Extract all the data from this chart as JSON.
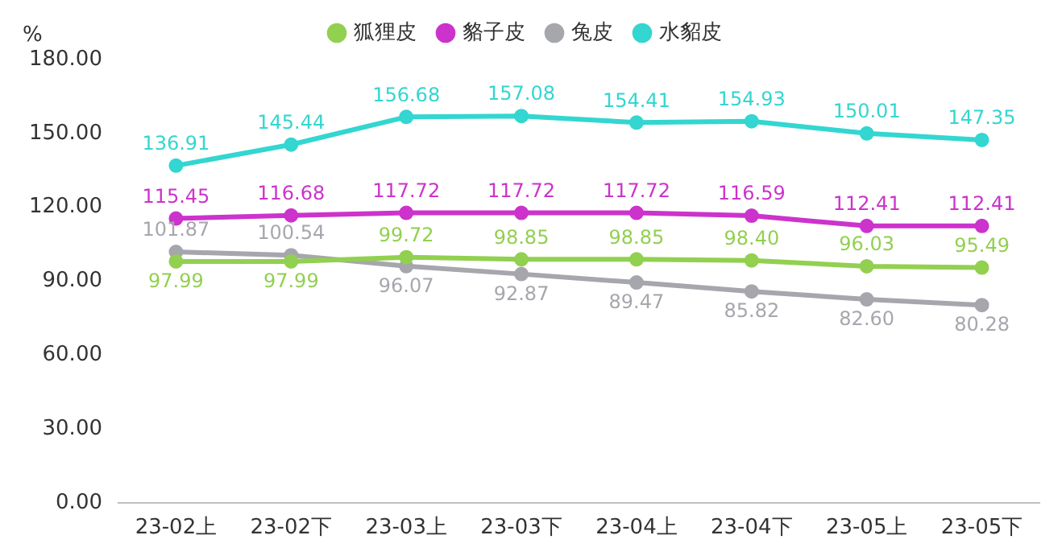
{
  "chart_data": {
    "type": "line",
    "ylabel": "%",
    "categories": [
      "23-02上",
      "23-02下",
      "23-03上",
      "23-03下",
      "23-04上",
      "23-04下",
      "23-05上",
      "23-05下"
    ],
    "series": [
      {
        "name": "狐狸皮",
        "color": "#92d050",
        "values": [
          97.99,
          97.99,
          99.72,
          98.85,
          98.85,
          98.4,
          96.03,
          95.49
        ],
        "value_labels": [
          "97.99",
          "97.99",
          "99.72",
          "98.85",
          "98.85",
          "98.40",
          "96.03",
          "95.49"
        ]
      },
      {
        "name": "貉子皮",
        "color": "#cc33cc",
        "values": [
          115.45,
          116.68,
          117.72,
          117.72,
          117.72,
          116.59,
          112.41,
          112.41
        ],
        "value_labels": [
          "115.45",
          "116.68",
          "117.72",
          "117.72",
          "117.72",
          "116.59",
          "112.41",
          "112.41"
        ]
      },
      {
        "name": "兔皮",
        "color": "#a6a6ad",
        "values": [
          101.87,
          100.54,
          96.07,
          92.87,
          89.47,
          85.82,
          82.6,
          80.28
        ],
        "value_labels": [
          "101.87",
          "100.54",
          "96.07",
          "92.87",
          "89.47",
          "85.82",
          "82.60",
          "80.28"
        ]
      },
      {
        "name": "水貂皮",
        "color": "#33d6d0",
        "values": [
          136.91,
          145.44,
          156.68,
          157.08,
          154.41,
          154.93,
          150.01,
          147.35
        ],
        "value_labels": [
          "136.91",
          "145.44",
          "156.68",
          "157.08",
          "154.41",
          "154.93",
          "150.01",
          "147.35"
        ]
      }
    ],
    "ylim": [
      0,
      180
    ],
    "yticks": [
      {
        "value": 0,
        "label": "0.00"
      },
      {
        "value": 30,
        "label": "30.00"
      },
      {
        "value": 60,
        "label": "60.00"
      },
      {
        "value": 90,
        "label": "90.00"
      },
      {
        "value": 120,
        "label": "120.00"
      },
      {
        "value": 150,
        "label": "150.00"
      },
      {
        "value": 180,
        "label": "180.00"
      }
    ],
    "grid": false,
    "legend": "top",
    "marker": "circle",
    "line_style": "solid"
  }
}
